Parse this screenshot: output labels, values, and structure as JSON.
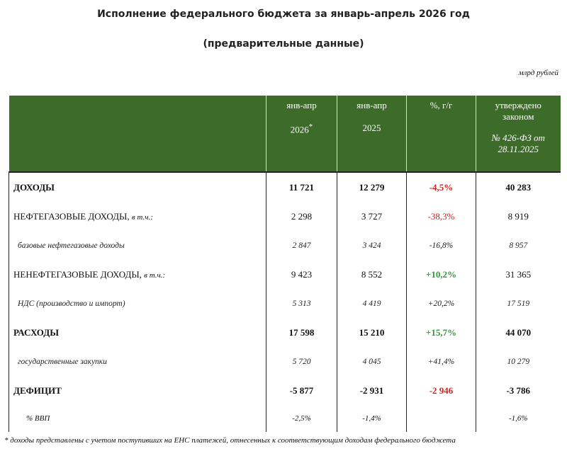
{
  "header": {
    "title": "Исполнение федерального бюджета за январь-апрель 2026 год",
    "subtitle": "(предварительные данные)",
    "unit": "млрд рублей"
  },
  "table": {
    "columns": [
      {
        "line1": "янв-апр",
        "line2": "2026",
        "mark": "*"
      },
      {
        "line1": "янв-апр",
        "line2": "2025"
      },
      {
        "line1": "%, г/г"
      },
      {
        "line1": "утверждено законом",
        "line2": "№ 426-ФЗ от 28.11.2025"
      }
    ],
    "rows": [
      {
        "label": "ДОХОДЫ",
        "cells": [
          "11 721",
          "12 279",
          "-4,5%",
          "40 283"
        ]
      },
      {
        "label": "НЕФТЕГАЗОВЫЕ ДОХОДЫ,",
        "note": "в т.ч.:",
        "cells": [
          "2 298",
          "3 727",
          "-38,3%",
          "8 919"
        ]
      },
      {
        "label": "базовые нефтегазовые доходы",
        "cells": [
          "2 847",
          "3 424",
          "-16,8%",
          "8 957"
        ]
      },
      {
        "label": "НЕНЕФТЕГАЗОВЫЕ ДОХОДЫ,",
        "note": "в т.ч.:",
        "cells": [
          "9 423",
          "8 552",
          "+10,2%",
          "31 365"
        ]
      },
      {
        "label": "НДС (производство и импорт)",
        "cells": [
          "5 313",
          "4 419",
          "+20,2%",
          "17 519"
        ]
      },
      {
        "label": "РАСХОДЫ",
        "cells": [
          "17 598",
          "15 210",
          "+15,7%",
          "44 070"
        ]
      },
      {
        "label": "государственные закупки",
        "cells": [
          "5 720",
          "4 045",
          "+41,4%",
          "10 279"
        ]
      },
      {
        "label": "ДЕФИЦИТ",
        "cells": [
          "-5 877",
          "-2 931",
          "-2 946",
          "-3 786"
        ]
      },
      {
        "label": "% ВВП",
        "cells": [
          "-2,5%",
          "-1,4%",
          "",
          "-1,6%"
        ]
      }
    ]
  },
  "footnote": "* доходы представлены с учетом поступивших на ЕНС платежей, отнесенных к соответствующим доходам федерального бюджета"
}
